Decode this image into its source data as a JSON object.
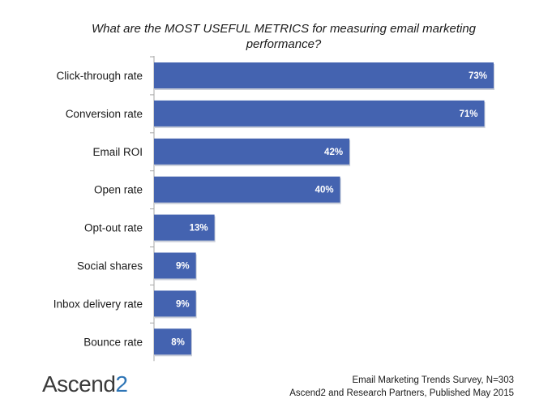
{
  "chart_data": {
    "type": "bar",
    "orientation": "horizontal",
    "title": "What are the MOST USEFUL METRICS for measuring email marketing performance?",
    "categories": [
      "Click-through rate",
      "Conversion rate",
      "Email ROI",
      "Open rate",
      "Opt-out rate",
      "Social shares",
      "Inbox delivery rate",
      "Bounce rate"
    ],
    "values": [
      73,
      71,
      42,
      40,
      13,
      9,
      9,
      8
    ],
    "value_labels": [
      "73%",
      "71%",
      "42%",
      "40%",
      "13%",
      "9%",
      "9%",
      "8%"
    ],
    "xlim": [
      0,
      80
    ],
    "grid": false,
    "bar_color": "#4463b0"
  },
  "logo": {
    "text": "Ascend",
    "number": "2"
  },
  "source": {
    "line1": "Email Marketing Trends Survey, N=303",
    "line2": "Ascend2 and Research Partners, Published May 2015"
  }
}
